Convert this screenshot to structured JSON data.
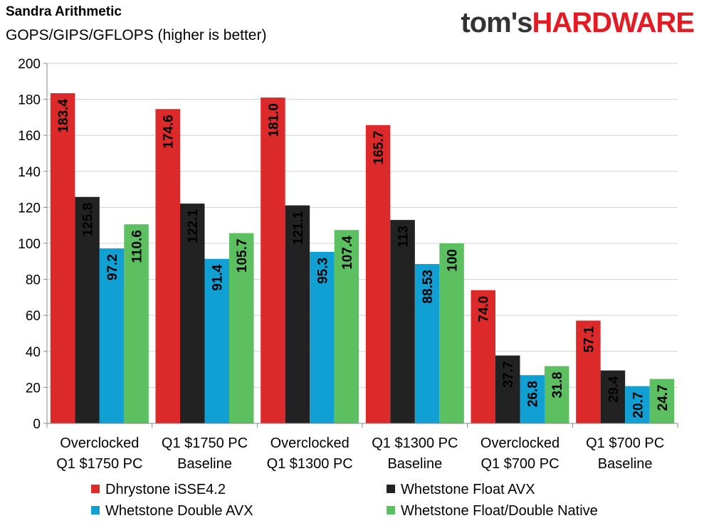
{
  "brand": {
    "part1": "tom's",
    "part2": "HARDWARE"
  },
  "chart_data": {
    "type": "bar",
    "title": "Sandra Arithmetic",
    "subtitle": "GOPS/GIPS/GFLOPS (higher is better)",
    "categories": [
      [
        "Overclocked",
        "Q1 $1750 PC"
      ],
      [
        "Q1 $1750 PC",
        "Baseline"
      ],
      [
        "Overclocked",
        "Q1 $1300 PC"
      ],
      [
        "Q1 $1300 PC",
        "Baseline"
      ],
      [
        "Overclocked",
        "Q1 $700 PC"
      ],
      [
        "Q1 $700 PC",
        "Baseline"
      ]
    ],
    "series": [
      {
        "name": "Dhrystone iSSE4.2",
        "color": "#dc2a2a",
        "values": [
          183.4,
          174.6,
          181.0,
          165.7,
          74.0,
          57.1
        ],
        "labels": [
          "183.4",
          "174.6",
          "181.0",
          "165.7",
          "74.0",
          "57.1"
        ]
      },
      {
        "name": "Whetstone Float AVX",
        "color": "#222222",
        "values": [
          125.8,
          122.1,
          121.1,
          113,
          37.7,
          29.4
        ],
        "labels": [
          "125.8",
          "122.1",
          "121.1",
          "113",
          "37.7",
          "29.4"
        ]
      },
      {
        "name": "Whetstone Double AVX",
        "color": "#11a0d4",
        "values": [
          97.2,
          91.4,
          95.3,
          88.53,
          26.8,
          20.7
        ],
        "labels": [
          "97.2",
          "91.4",
          "95.3",
          "88.53",
          "26.8",
          "20.7"
        ]
      },
      {
        "name": "Whetstone Float/Double Native",
        "color": "#5cbf60",
        "values": [
          110.6,
          105.7,
          107.4,
          100,
          31.8,
          24.7
        ],
        "labels": [
          "110.6",
          "105.7",
          "107.4",
          "100",
          "31.8",
          "24.7"
        ]
      }
    ],
    "ylim": [
      0,
      200
    ],
    "yticks": [
      "0",
      "20",
      "40",
      "60",
      "80",
      "100",
      "120",
      "140",
      "160",
      "180",
      "200"
    ],
    "grid": true,
    "legend_position": "bottom"
  }
}
